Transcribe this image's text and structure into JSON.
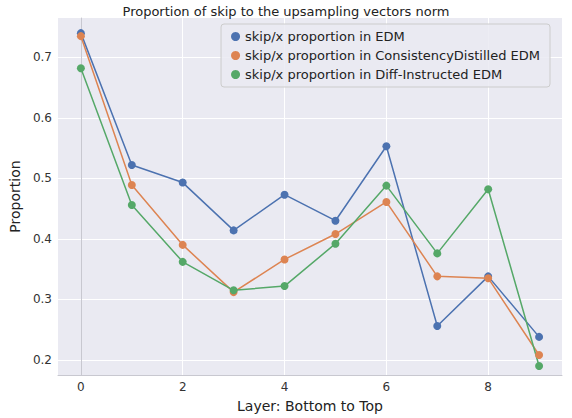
{
  "chart_data": {
    "type": "line",
    "title": "Proportion of skip to the upsampling vectors norm",
    "xlabel": "Layer: Bottom to Top",
    "ylabel": "Proportion",
    "x": [
      0,
      1,
      2,
      3,
      4,
      5,
      6,
      7,
      8,
      9
    ],
    "series": [
      {
        "name": "skip/x proportion in EDM",
        "color": "#4c72b0",
        "values": [
          0.74,
          0.522,
          0.493,
          0.414,
          0.473,
          0.43,
          0.553,
          0.256,
          0.338,
          0.238
        ]
      },
      {
        "name": "skip/x proportion in ConsistencyDistilled EDM",
        "color": "#dd8452",
        "values": [
          0.735,
          0.489,
          0.39,
          0.312,
          0.366,
          0.408,
          0.461,
          0.338,
          0.335,
          0.208
        ]
      },
      {
        "name": "skip/x proportion in Diff-Instructed EDM",
        "color": "#55a868",
        "values": [
          0.682,
          0.456,
          0.362,
          0.315,
          0.322,
          0.392,
          0.488,
          0.376,
          0.482,
          0.19
        ]
      }
    ],
    "xlim": [
      -0.45,
      9.45
    ],
    "xticks": [
      0,
      2,
      4,
      6,
      8
    ],
    "ylim": [
      0.175,
      0.765
    ],
    "yticks": [
      0.2,
      0.3,
      0.4,
      0.5,
      0.6,
      0.7
    ],
    "grid": true,
    "legend": "upper right",
    "marker": "circle"
  }
}
